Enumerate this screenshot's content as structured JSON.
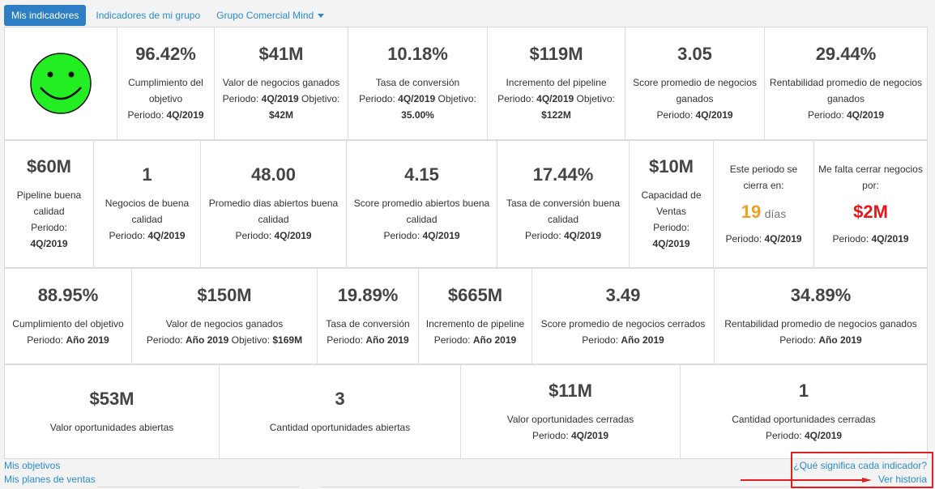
{
  "tabs": [
    {
      "label": "Mis indicadores",
      "active": true
    },
    {
      "label": "Indicadores de mi grupo",
      "active": false
    },
    {
      "label": "Grupo Comercial Mind",
      "active": false
    }
  ],
  "colors": {
    "smiley": "#22ee22",
    "accent": "#2d7ec2",
    "orange": "#f0a020",
    "red": "#e8141a"
  },
  "row1": [
    {
      "value": "96.42%",
      "label": "Cumplimiento del objetivo",
      "periodo_label": "Periodo:",
      "periodo": "4Q/2019"
    },
    {
      "value": "$41M",
      "label": "Valor de negocios ganados",
      "periodo_label": "Periodo:",
      "periodo": "4Q/2019",
      "objetivo_label": "Objetivo:",
      "objetivo": "$42M"
    },
    {
      "value": "10.18%",
      "label": "Tasa de conversión",
      "periodo_label": "Periodo:",
      "periodo": "4Q/2019",
      "objetivo_label": "Objetivo:",
      "objetivo": "35.00%"
    },
    {
      "value": "$119M",
      "label": "Incremento del pipeline",
      "periodo_label": "Periodo:",
      "periodo": "4Q/2019",
      "objetivo_label": "Objetivo:",
      "objetivo": "$122M"
    },
    {
      "value": "3.05",
      "label": "Score promedio de negocios ganados",
      "periodo_label": "Periodo:",
      "periodo": "4Q/2019"
    },
    {
      "value": "29.44%",
      "label": "Rentabilidad promedio de negocios ganados",
      "periodo_label": "Periodo:",
      "periodo": "4Q/2019"
    }
  ],
  "row2": [
    {
      "value": "$60M",
      "label": "Pipeline buena calidad",
      "periodo_label": "Periodo:",
      "periodo": "4Q/2019"
    },
    {
      "value": "1",
      "label": "Negocios de buena calidad",
      "periodo_label": "Periodo:",
      "periodo": "4Q/2019"
    },
    {
      "value": "48.00",
      "label": "Promedio dias abiertos buena calidad",
      "periodo_label": "Periodo:",
      "periodo": "4Q/2019"
    },
    {
      "value": "4.15",
      "label": "Score promedio abiertos buena calidad",
      "periodo_label": "Periodo:",
      "periodo": "4Q/2019"
    },
    {
      "value": "17.44%",
      "label": "Tasa de conversión buena calidad",
      "periodo_label": "Periodo:",
      "periodo": "4Q/2019"
    },
    {
      "value": "$10M",
      "label": "Capacidad de Ventas",
      "periodo_label": "Periodo:",
      "periodo": "4Q/2019"
    },
    {
      "heading": "Este periodo se cierra en:",
      "value": "19",
      "unit": "días",
      "periodo_label": "Periodo:",
      "periodo": "4Q/2019"
    },
    {
      "heading": "Me falta cerrar negocios por:",
      "value": "$2M",
      "periodo_label": "Periodo:",
      "periodo": "4Q/2019"
    }
  ],
  "row3": [
    {
      "value": "88.95%",
      "label": "Cumplimiento del objetivo",
      "periodo_label": "Periodo:",
      "periodo": "Año 2019"
    },
    {
      "value": "$150M",
      "label": "Valor de negocios ganados",
      "periodo_label": "Periodo:",
      "periodo": "Año 2019",
      "objetivo_label": "Objetivo:",
      "objetivo": "$169M"
    },
    {
      "value": "19.89%",
      "label": "Tasa de conversión",
      "periodo_label": "Periodo:",
      "periodo": "Año 2019"
    },
    {
      "value": "$665M",
      "label": "Incremento de pipeline",
      "periodo_label": "Periodo:",
      "periodo": "Año 2019"
    },
    {
      "value": "3.49",
      "label": "Score promedio de negocios cerrados",
      "periodo_label": "Periodo:",
      "periodo": "Año 2019"
    },
    {
      "value": "34.89%",
      "label": "Rentabilidad promedio de negocios ganados",
      "periodo_label": "Periodo:",
      "periodo": "Año 2019"
    }
  ],
  "row4": [
    {
      "value": "$53M",
      "label": "Valor oportunidades abiertas"
    },
    {
      "value": "3",
      "label": "Cantidad oportunidades abiertas"
    },
    {
      "value": "$11M",
      "label": "Valor oportunidades cerradas",
      "periodo_label": "Periodo:",
      "periodo": "4Q/2019"
    },
    {
      "value": "1",
      "label": "Cantidad oportunidades cerradas",
      "periodo_label": "Periodo:",
      "periodo": "4Q/2019"
    }
  ],
  "footer": {
    "mis_objetivos": "Mis objetivos",
    "mis_planes": "Mis planes de ventas",
    "que_significa": "¿Qué significa cada indicador?",
    "ver_historia": "Ver historia"
  }
}
